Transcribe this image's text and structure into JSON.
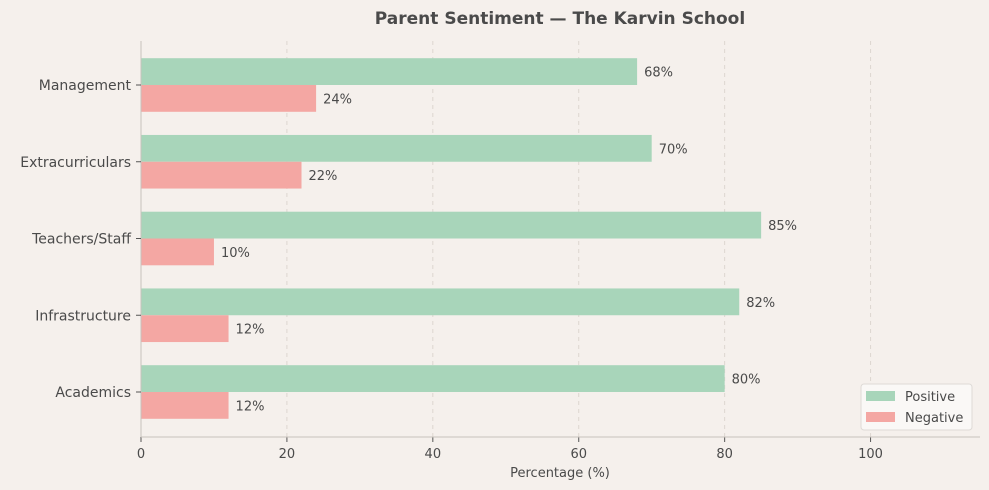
{
  "chart_data": {
    "type": "bar",
    "orientation": "horizontal",
    "title": "Parent Sentiment — The Karvin School",
    "xlabel": "Percentage (%)",
    "ylabel": "",
    "xlim": [
      0,
      115
    ],
    "xticks": [
      0,
      20,
      40,
      60,
      80,
      100
    ],
    "grid": "x dashed",
    "legend": "bottom-right",
    "categories": [
      "Academics",
      "Infrastructure",
      "Teachers/Staff",
      "Extracurriculars",
      "Management"
    ],
    "series": [
      {
        "name": "Positive",
        "color": "#a8d5ba",
        "values": [
          80,
          82,
          85,
          70,
          68
        ]
      },
      {
        "name": "Negative",
        "color": "#f4a7a3",
        "values": [
          12,
          12,
          10,
          22,
          24
        ]
      }
    ],
    "value_suffix": "%"
  }
}
